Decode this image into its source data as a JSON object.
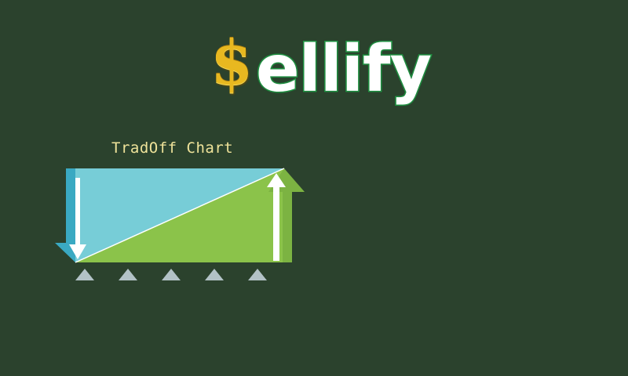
{
  "logo": {
    "dollar": "$",
    "word": "ellify"
  },
  "chart": {
    "title": "TradOff Chart"
  },
  "colors": {
    "background": "#2b422d",
    "panel_blue": "#77cdd7",
    "panel_green": "#8bc34a",
    "logo_gold": "#e8b820",
    "logo_green": "#1f9a44",
    "title_text": "#efe39a"
  },
  "icons": {
    "down_arrow": "down-arrow-icon",
    "up_arrow": "up-arrow-icon",
    "fulcrum": "triangle-icon"
  }
}
